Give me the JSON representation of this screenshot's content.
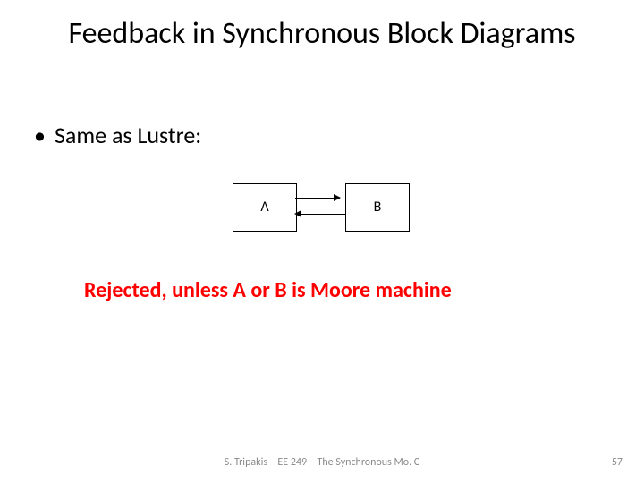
{
  "title": "Feedback in Synchronous Block Diagrams",
  "bullet": "Same as Lustre:",
  "diagram": {
    "block_a_label": "A",
    "block_b_label": "B",
    "block_border_color": "#000000",
    "block_fill_color": "#ffffff",
    "arrow_color": "#000000"
  },
  "rejected_text": "Rejected, unless A or B is Moore machine",
  "rejected_color": "#ff0000",
  "footer": "S. Tripakis – EE 249 – The Synchronous Mo. C",
  "page_number": "57",
  "colors": {
    "background": "#ffffff",
    "text": "#000000",
    "footer_text": "#8a8a8a"
  },
  "fonts": {
    "title_size_pt": 34,
    "bullet_size_pt": 26,
    "rejected_size_pt": 24,
    "block_label_size_pt": 16,
    "footer_size_pt": 12
  }
}
